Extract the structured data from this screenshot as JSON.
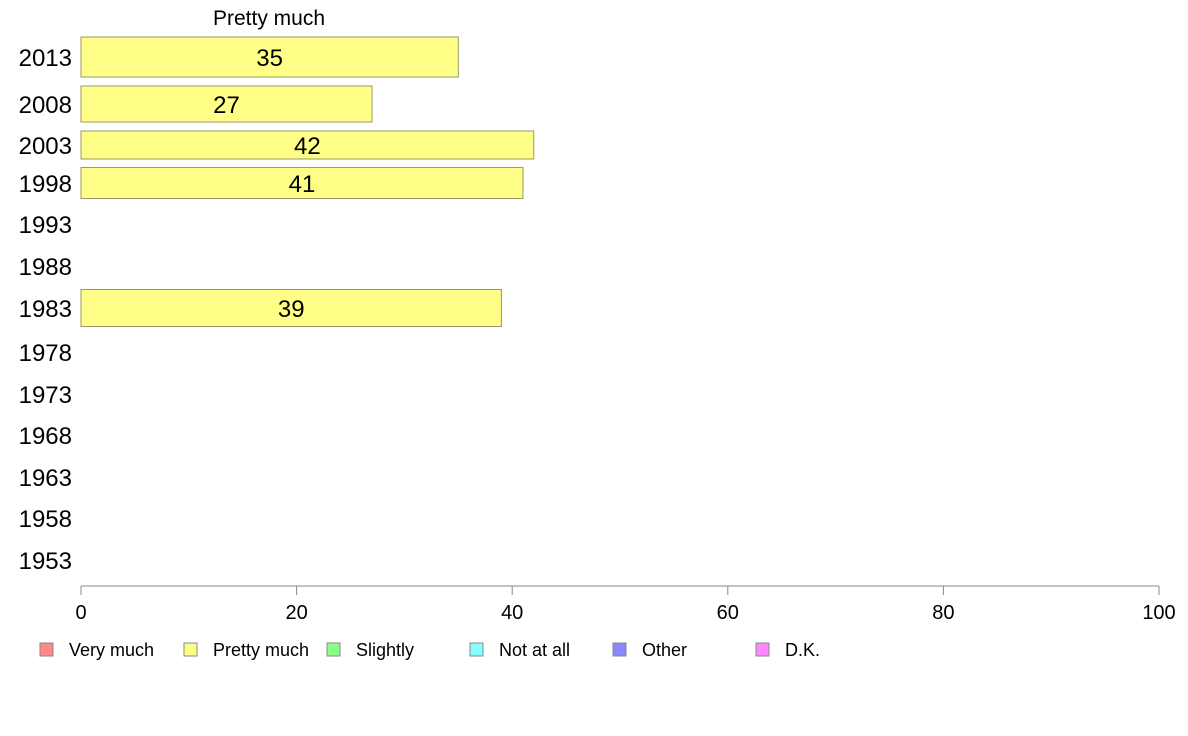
{
  "chart_data": {
    "type": "bar",
    "orientation": "horizontal",
    "title": "Pretty much",
    "categories": [
      "2013",
      "2008",
      "2003",
      "1998",
      "1993",
      "1988",
      "1983",
      "1978",
      "1973",
      "1968",
      "1963",
      "1958",
      "1953"
    ],
    "series": [
      {
        "name": "Pretty much",
        "color": "#ffff88",
        "values": [
          35,
          27,
          42,
          41,
          null,
          null,
          39,
          null,
          null,
          null,
          null,
          null,
          null
        ]
      }
    ],
    "xlim": [
      0,
      100
    ],
    "xticks": [
      0,
      20,
      40,
      60,
      80,
      100
    ],
    "grid": false,
    "legend_position": "bottom",
    "legend": [
      {
        "label": "Very much",
        "color": "#ff8888"
      },
      {
        "label": "Pretty much",
        "color": "#ffff88"
      },
      {
        "label": "Slightly",
        "color": "#88ff88"
      },
      {
        "label": "Not at all",
        "color": "#88ffff"
      },
      {
        "label": "Other",
        "color": "#8888ff"
      },
      {
        "label": "D.K.",
        "color": "#ff88ff"
      }
    ]
  }
}
